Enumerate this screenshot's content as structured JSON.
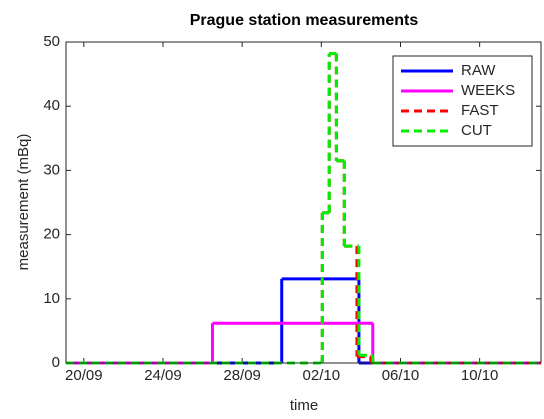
{
  "chart_data": {
    "type": "stairs",
    "title": "Prague station measurements",
    "xlabel": "time",
    "ylabel": "measurement (mBq)",
    "xlim": [
      -0.9,
      23.1
    ],
    "xticks": [
      {
        "value": 0,
        "label": "20/09"
      },
      {
        "value": 4,
        "label": "24/09"
      },
      {
        "value": 8,
        "label": "28/09"
      },
      {
        "value": 12,
        "label": "02/10"
      },
      {
        "value": 16,
        "label": "06/10"
      },
      {
        "value": 20,
        "label": "10/10"
      }
    ],
    "ylim": [
      0,
      50
    ],
    "yticks": [
      0,
      10,
      20,
      30,
      40,
      50
    ],
    "grid": false,
    "legend": "upper right",
    "series": [
      {
        "name": "RAW",
        "color": "#0000ff",
        "dash": false,
        "x": [
          -0.9,
          10,
          13.9
        ],
        "values": [
          0,
          13.1,
          0
        ]
      },
      {
        "name": "WEEKS",
        "color": "#ff00ff",
        "dash": false,
        "x": [
          -0.9,
          6.5,
          14.6
        ],
        "values": [
          0,
          6.2,
          0
        ]
      },
      {
        "name": "FAST",
        "color": "#ff0000",
        "dash": true,
        "x": [
          -0.9,
          12.05,
          12.4,
          12.76,
          13.16,
          13.8,
          14.5
        ],
        "values": [
          0,
          23.4,
          48.2,
          31.5,
          18.2,
          1,
          0
        ]
      },
      {
        "name": "CUT",
        "color": "#00ee00",
        "dash": true,
        "x": [
          -0.9,
          12.05,
          12.4,
          12.76,
          13.16,
          13.9,
          14.6
        ],
        "values": [
          0,
          23.4,
          48.2,
          31.5,
          18.2,
          1.2,
          0
        ]
      }
    ]
  }
}
